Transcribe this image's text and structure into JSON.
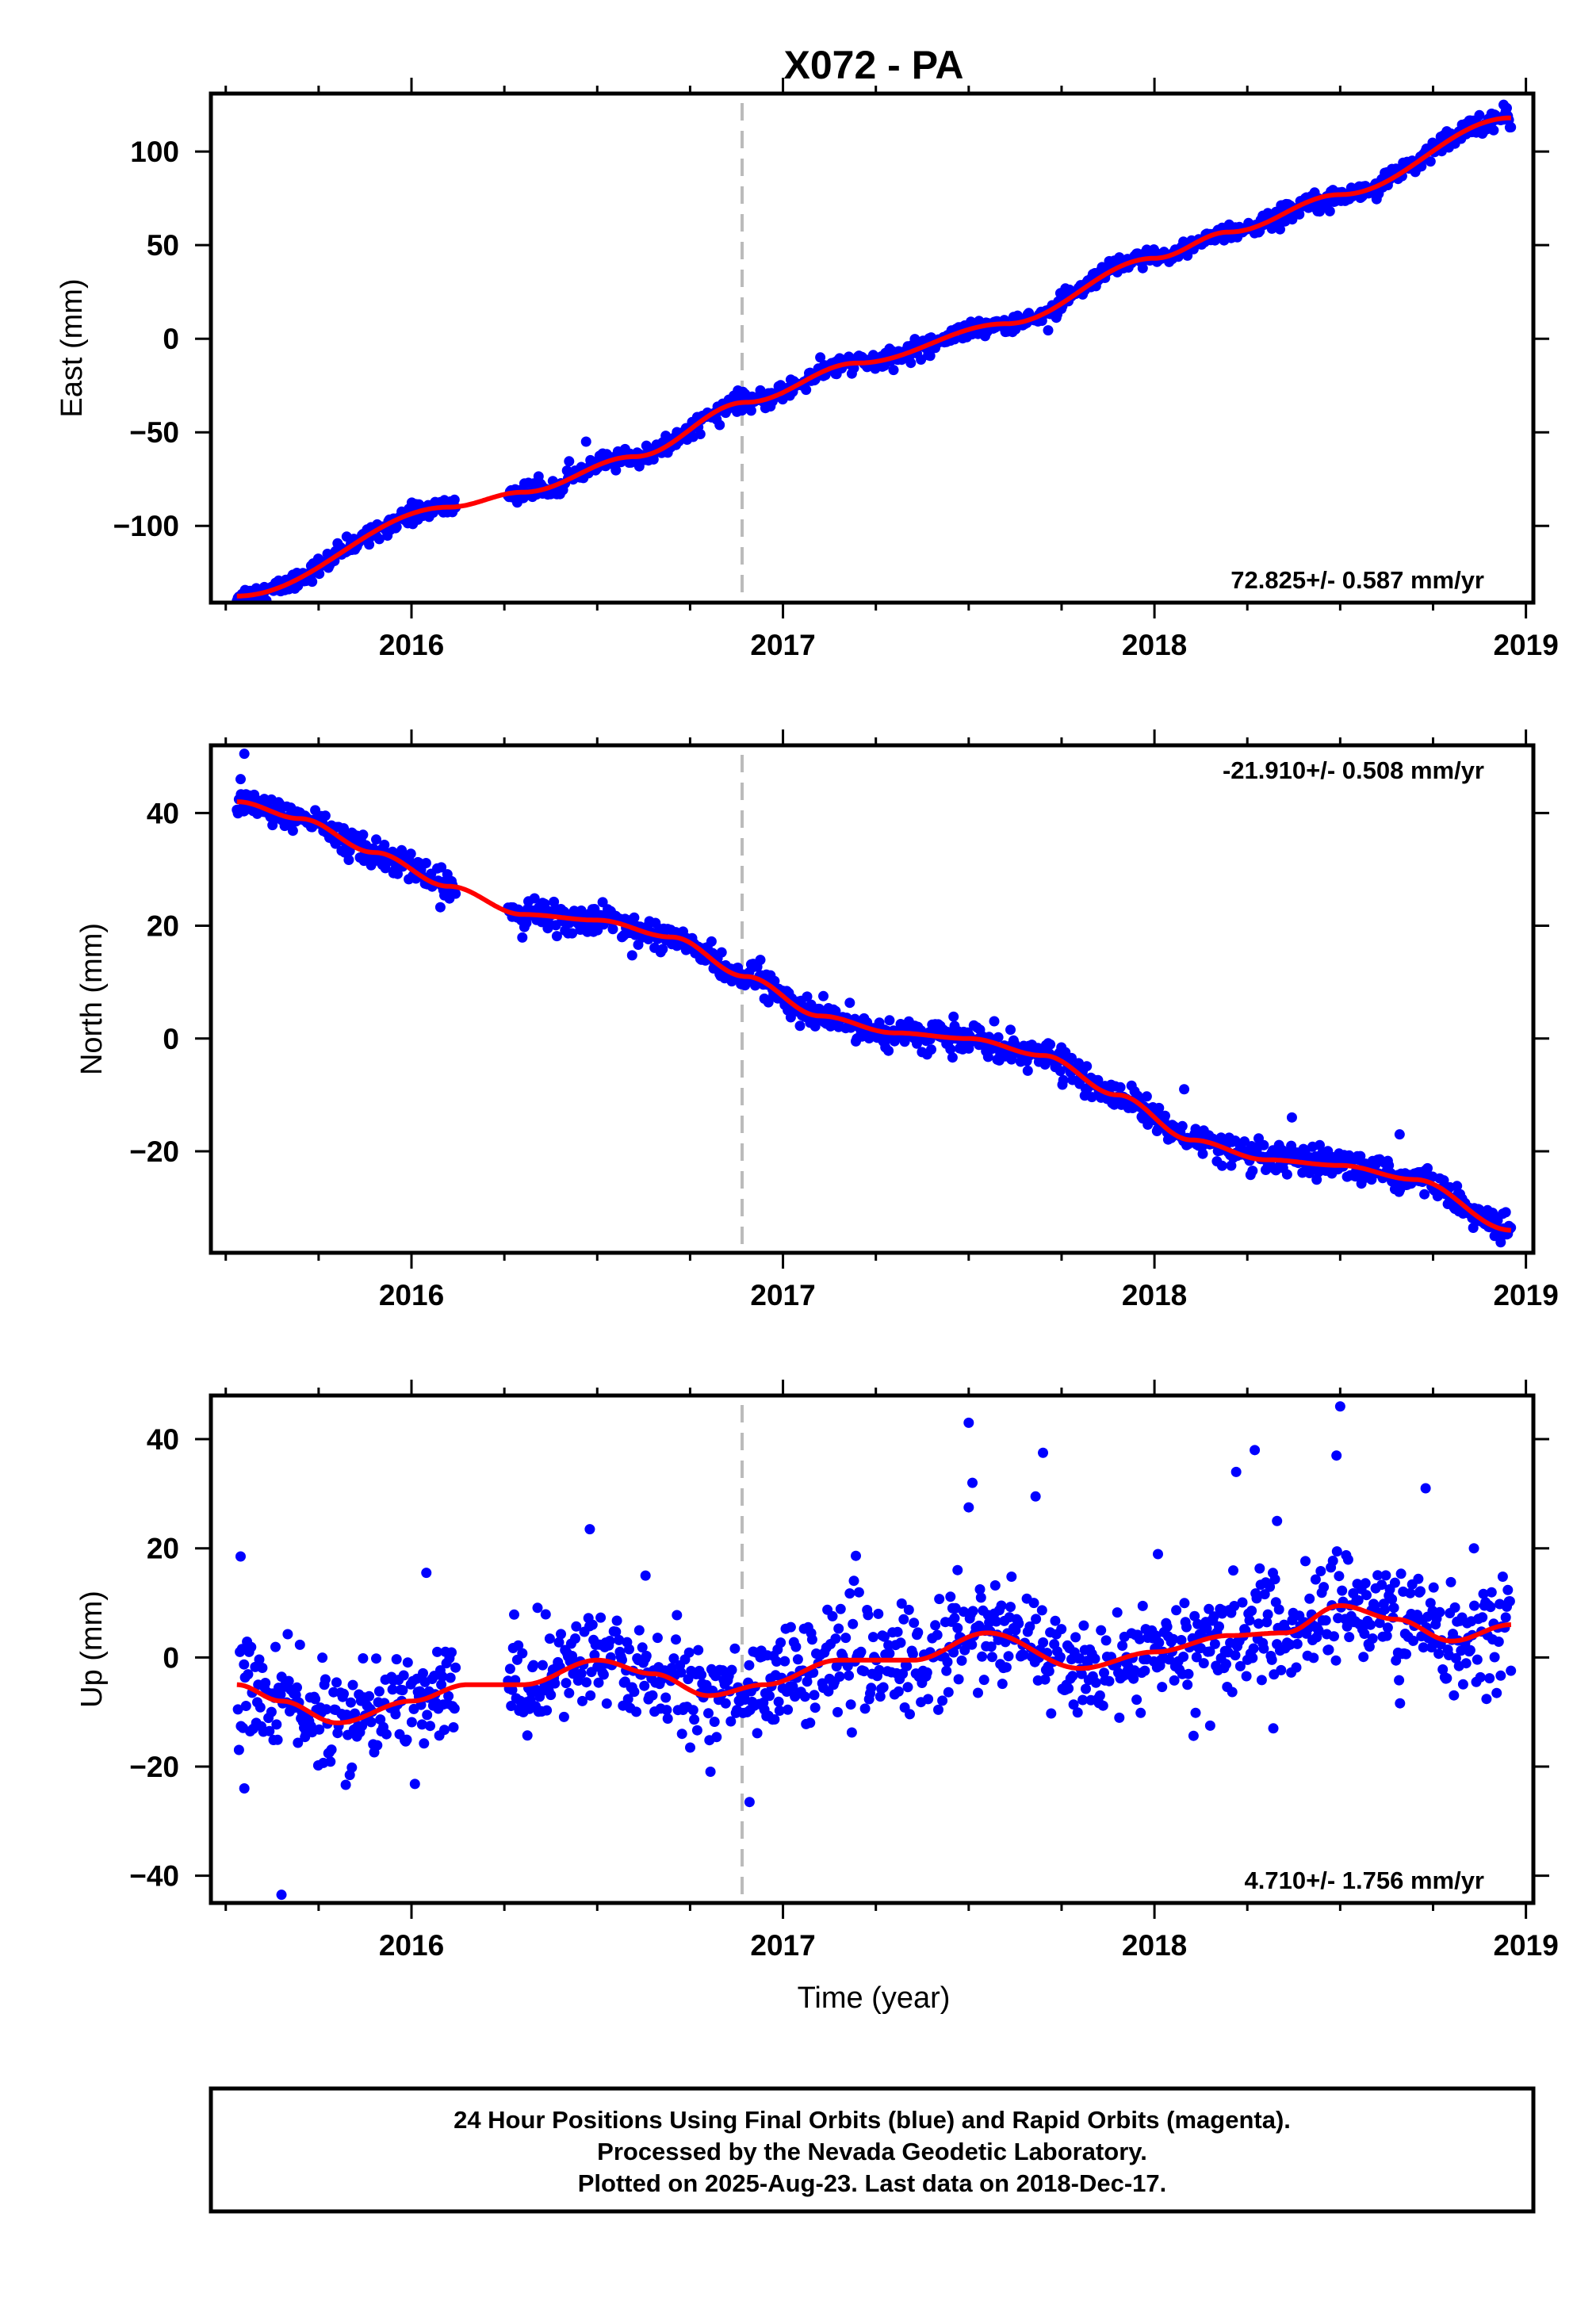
{
  "title": "X072 - PA",
  "xlabel": "Time (year)",
  "x_ticks": [
    "2016",
    "2017",
    "2018",
    "2019"
  ],
  "footer": {
    "line1": "24 Hour Positions Using Final Orbits (blue) and Rapid Orbits (magenta).",
    "line2": "Processed by the Nevada Geodetic Laboratory.",
    "line3": "Plotted on 2025-Aug-23. Last data on 2018-Dec-17."
  },
  "colors": {
    "data_points": "#0000ff",
    "model_fit": "#ff0000",
    "event_line": "#bbbbbb",
    "frame": "#000000"
  },
  "chart_data": [
    {
      "type": "scatter",
      "component": "East",
      "ylabel": "East (mm)",
      "rate_label": "72.825+/- 0.587 mm/yr",
      "rate_position": "bottom-right",
      "xlim": [
        2015.46,
        2019.02
      ],
      "ylim": [
        -141,
        131
      ],
      "y_ticks": [
        -100,
        -50,
        0,
        50,
        100
      ],
      "event_line_x": 2016.89,
      "fit": {
        "x": [
          2015.53,
          2016.1,
          2016.3,
          2016.6,
          2016.9,
          2017.2,
          2017.6,
          2018.0,
          2018.2,
          2018.5,
          2018.96
        ],
        "y": [
          -137.5,
          -90,
          -82,
          -63,
          -34,
          -13,
          8,
          43,
          57,
          77,
          118
        ]
      },
      "data_segments": [
        {
          "x_start": 2015.53,
          "x_end": 2016.12,
          "scatter": 2.5
        },
        {
          "x_start": 2016.26,
          "x_end": 2018.96,
          "scatter": 2.5
        }
      ],
      "outliers": [
        {
          "x": 2016.47,
          "y": -55
        },
        {
          "x": 2018.94,
          "y": 125
        }
      ]
    },
    {
      "type": "scatter",
      "component": "North",
      "ylabel": "North (mm)",
      "rate_label": "-21.910+/- 0.508 mm/yr",
      "rate_position": "top-right",
      "xlim": [
        2015.46,
        2019.02
      ],
      "ylim": [
        -38,
        52
      ],
      "y_ticks": [
        -20,
        0,
        20,
        40
      ],
      "event_line_x": 2016.89,
      "fit": {
        "x": [
          2015.53,
          2015.7,
          2015.9,
          2016.1,
          2016.3,
          2016.5,
          2016.7,
          2016.9,
          2017.1,
          2017.3,
          2017.5,
          2017.7,
          2017.9,
          2018.1,
          2018.3,
          2018.5,
          2018.7,
          2018.96
        ],
        "y": [
          42,
          39,
          33,
          27,
          22,
          21,
          18,
          11,
          4,
          1,
          0,
          -3,
          -10,
          -18,
          -21.5,
          -22.5,
          -25,
          -34
        ]
      },
      "data_segments": [
        {
          "x_start": 2015.53,
          "x_end": 2016.12,
          "scatter": 1.3
        },
        {
          "x_start": 2016.26,
          "x_end": 2018.96,
          "scatter": 1.3
        }
      ],
      "outliers": [
        {
          "x": 2015.55,
          "y": 50.5
        },
        {
          "x": 2015.54,
          "y": 46
        },
        {
          "x": 2018.08,
          "y": -9
        },
        {
          "x": 2018.66,
          "y": -17
        },
        {
          "x": 2018.37,
          "y": -14
        }
      ]
    },
    {
      "type": "scatter",
      "component": "Up",
      "ylabel": "Up (mm)",
      "rate_label": "4.710+/- 1.756 mm/yr",
      "rate_position": "bottom-right",
      "xlim": [
        2015.46,
        2019.02
      ],
      "ylim": [
        -45,
        48
      ],
      "y_ticks": [
        -40,
        -20,
        0,
        20,
        40
      ],
      "event_line_x": 2016.89,
      "fit": {
        "x": [
          2015.53,
          2015.65,
          2015.8,
          2016.0,
          2016.15,
          2016.3,
          2016.5,
          2016.65,
          2016.8,
          2016.95,
          2017.15,
          2017.35,
          2017.55,
          2017.8,
          2018.0,
          2018.2,
          2018.35,
          2018.5,
          2018.65,
          2018.8,
          2018.96
        ],
        "y": [
          -5,
          -8,
          -12,
          -8,
          -5,
          -5,
          -0.5,
          -3,
          -7,
          -5,
          -0.5,
          -0.5,
          4.5,
          -2,
          1,
          4,
          4.5,
          9.5,
          7,
          3,
          6
        ]
      },
      "data_segments": [
        {
          "x_start": 2015.53,
          "x_end": 2016.12,
          "scatter": 4.5
        },
        {
          "x_start": 2016.26,
          "x_end": 2018.96,
          "scatter": 5
        }
      ],
      "outliers": [
        {
          "x": 2015.54,
          "y": 18.5
        },
        {
          "x": 2015.55,
          "y": -24
        },
        {
          "x": 2015.65,
          "y": -43.5
        },
        {
          "x": 2016.04,
          "y": 15.5
        },
        {
          "x": 2016.48,
          "y": 23.5
        },
        {
          "x": 2016.63,
          "y": 15
        },
        {
          "x": 2016.91,
          "y": -26.5
        },
        {
          "x": 2017.5,
          "y": 43
        },
        {
          "x": 2017.51,
          "y": 32
        },
        {
          "x": 2017.5,
          "y": 27.5
        },
        {
          "x": 2017.47,
          "y": 16
        },
        {
          "x": 2017.7,
          "y": 37.5
        },
        {
          "x": 2017.68,
          "y": 29.5
        },
        {
          "x": 2018.22,
          "y": 34
        },
        {
          "x": 2018.27,
          "y": 38
        },
        {
          "x": 2018.33,
          "y": 25
        },
        {
          "x": 2018.5,
          "y": 46
        },
        {
          "x": 2018.49,
          "y": 37
        },
        {
          "x": 2018.73,
          "y": 31
        },
        {
          "x": 2018.86,
          "y": 20
        },
        {
          "x": 2018.15,
          "y": -12.5
        },
        {
          "x": 2018.32,
          "y": -13
        }
      ]
    }
  ]
}
